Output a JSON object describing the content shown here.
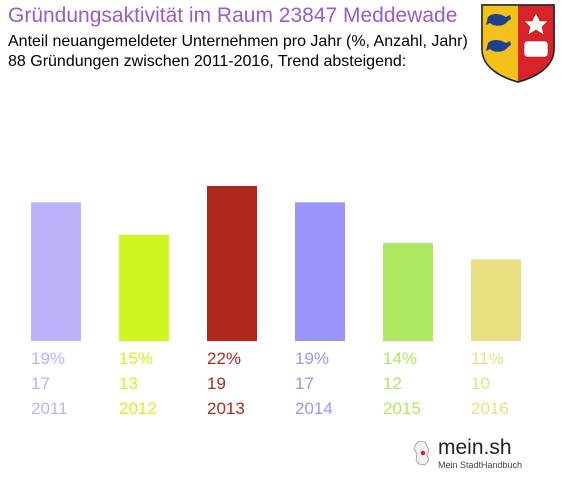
{
  "title": "Gründungsaktivität im Raum 23847 Meddewade",
  "subtitle_line1": "Anteil neuangemeldeter Unternehmen pro Jahr (%, Anzahl, Jahr)",
  "subtitle_line2": "88 Gründungen zwischen 2011-2016, Trend absteigend:",
  "branding": {
    "name": "mein.sh",
    "tagline": "Mein StadtHandbuch"
  },
  "colors": {
    "title": "#9b59d0",
    "bars": [
      "#bbb3f9",
      "#cdf520",
      "#b0281c",
      "#9a96f9",
      "#aee860",
      "#e8df80"
    ]
  },
  "chart_data": {
    "type": "bar",
    "categories": [
      "2011",
      "2012",
      "2013",
      "2014",
      "2015",
      "2016"
    ],
    "percent_labels": [
      "19%",
      "15%",
      "22%",
      "19%",
      "14%",
      "11%"
    ],
    "values": [
      17,
      13,
      19,
      17,
      12,
      10
    ],
    "title": "Gründungsaktivität im Raum 23847 Meddewade",
    "xlabel": "",
    "ylabel": "",
    "ylim": [
      0,
      19
    ],
    "grid": false,
    "legend": "none"
  }
}
